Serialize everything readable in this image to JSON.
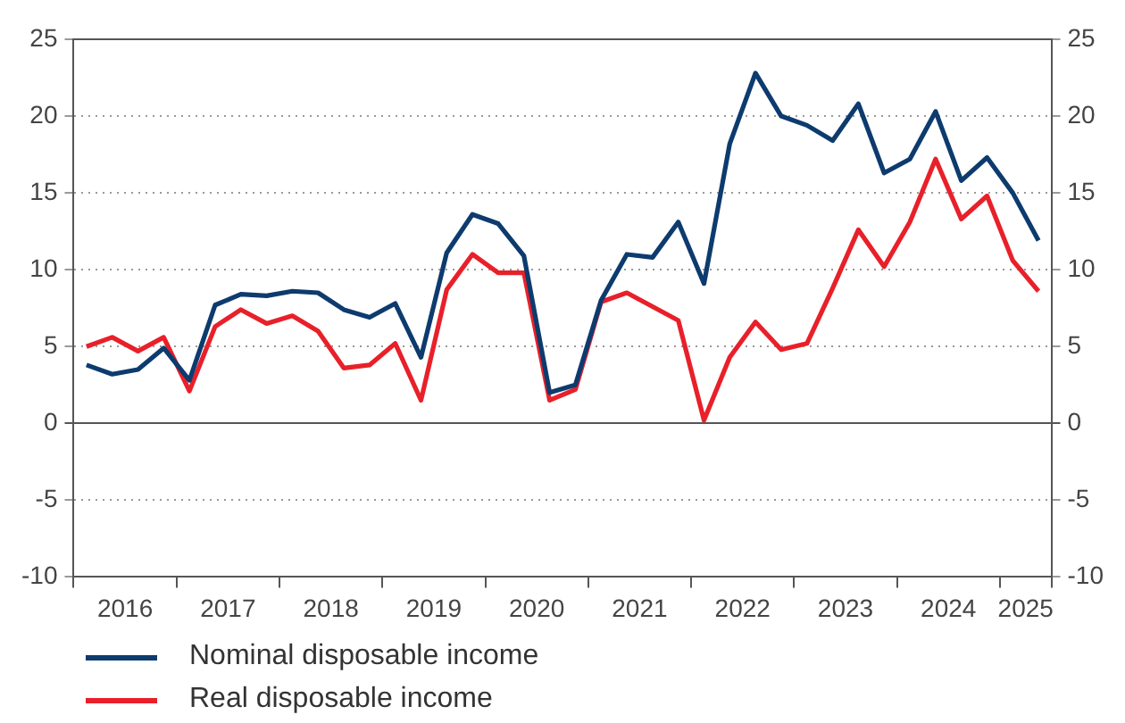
{
  "chart_data": {
    "type": "line",
    "x": [
      2016.125,
      2016.375,
      2016.625,
      2016.875,
      2017.125,
      2017.375,
      2017.625,
      2017.875,
      2018.125,
      2018.375,
      2018.625,
      2018.875,
      2019.125,
      2019.375,
      2019.625,
      2019.875,
      2020.125,
      2020.375,
      2020.625,
      2020.875,
      2021.125,
      2021.375,
      2021.625,
      2021.875,
      2022.125,
      2022.375,
      2022.625,
      2022.875,
      2023.125,
      2023.375,
      2023.625,
      2023.875,
      2024.125,
      2024.375,
      2024.625,
      2024.875,
      2025.125,
      2025.375
    ],
    "series": [
      {
        "name": "Nominal disposable income",
        "color": "#0d3b6e",
        "values": [
          3.8,
          3.2,
          3.5,
          4.9,
          2.8,
          7.7,
          8.4,
          8.3,
          8.6,
          8.5,
          7.4,
          6.9,
          7.8,
          4.3,
          11.1,
          13.6,
          13.0,
          10.9,
          2.0,
          2.5,
          8.0,
          11.0,
          10.8,
          13.1,
          9.1,
          18.2,
          22.8,
          20.0,
          19.4,
          18.4,
          20.8,
          16.3,
          17.2,
          20.3,
          15.8,
          17.3,
          15.0,
          11.9
        ]
      },
      {
        "name": "Real disposable income",
        "color": "#e8202a",
        "values": [
          5.0,
          5.6,
          4.7,
          5.6,
          2.1,
          6.3,
          7.4,
          6.5,
          7.0,
          6.0,
          3.6,
          3.8,
          5.2,
          1.5,
          8.7,
          11.0,
          9.8,
          9.8,
          1.5,
          2.2,
          7.9,
          8.5,
          7.6,
          6.7,
          0.2,
          4.3,
          6.6,
          4.8,
          5.2,
          8.8,
          12.6,
          10.2,
          13.1,
          17.2,
          13.3,
          14.8,
          10.6,
          8.6
        ]
      }
    ],
    "xlim": [
      2016,
      2025.5
    ],
    "xticks": [
      {
        "value": 2016,
        "label": null
      },
      {
        "value": 2016.5,
        "label": "2016"
      },
      {
        "value": 2017,
        "label": null
      },
      {
        "value": 2017.5,
        "label": "2017"
      },
      {
        "value": 2018,
        "label": null
      },
      {
        "value": 2018.5,
        "label": "2018"
      },
      {
        "value": 2019,
        "label": null
      },
      {
        "value": 2019.5,
        "label": "2019"
      },
      {
        "value": 2020,
        "label": null
      },
      {
        "value": 2020.5,
        "label": "2020"
      },
      {
        "value": 2021,
        "label": null
      },
      {
        "value": 2021.5,
        "label": "2021"
      },
      {
        "value": 2022,
        "label": null
      },
      {
        "value": 2022.5,
        "label": "2022"
      },
      {
        "value": 2023,
        "label": null
      },
      {
        "value": 2023.5,
        "label": "2023"
      },
      {
        "value": 2024,
        "label": null
      },
      {
        "value": 2024.5,
        "label": "2024"
      },
      {
        "value": 2025,
        "label": null
      },
      {
        "value": 2025.25,
        "label": "2025"
      },
      {
        "value": 2025.5,
        "label": null
      }
    ],
    "ylim": [
      -10,
      25
    ],
    "yticks": [
      -10,
      -5,
      0,
      5,
      10,
      15,
      20,
      25
    ],
    "y2lim": [
      -10,
      25
    ],
    "y2ticks": [
      -10,
      -5,
      0,
      5,
      10,
      15,
      20,
      25
    ],
    "grid": "y",
    "legend": "bottom left",
    "marker": "none",
    "line_style": "solid"
  }
}
